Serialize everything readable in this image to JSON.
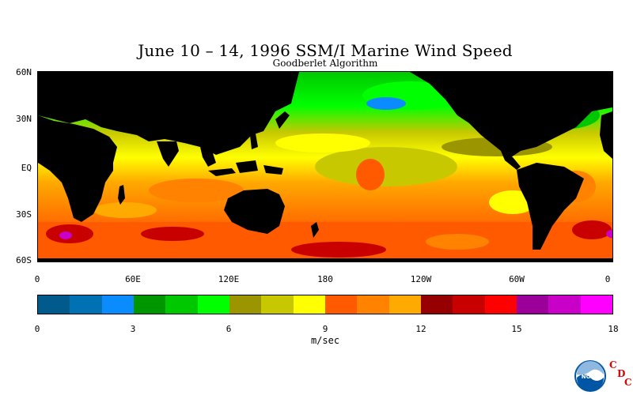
{
  "title": "June 10 – 14, 1996 SSM/I Marine Wind Speed",
  "subtitle": "Goodberlet Algorithm",
  "map": {
    "lat_labels": [
      "60N",
      "30N",
      "EQ",
      "30S",
      "60S"
    ],
    "lon_labels": [
      "0",
      "60E",
      "120E",
      "180",
      "120W",
      "60W",
      "0"
    ],
    "land_color": "#000000",
    "border_color": "#000000"
  },
  "colorbar": {
    "colors": [
      "#005a8c",
      "#0072b4",
      "#0a8cff",
      "#009600",
      "#00c800",
      "#00ff00",
      "#9b9600",
      "#c8c800",
      "#ffff00",
      "#ff5a00",
      "#ff8200",
      "#ffaa00",
      "#960000",
      "#c80000",
      "#ff0000",
      "#9b009b",
      "#c800c8",
      "#ff00ff"
    ],
    "tick_labels": [
      "0",
      "3",
      "6",
      "9",
      "12",
      "15",
      "18"
    ],
    "units": "m/sec"
  },
  "logo": {
    "badge": "NOAA",
    "letters": [
      "C",
      "D",
      "C"
    ]
  }
}
